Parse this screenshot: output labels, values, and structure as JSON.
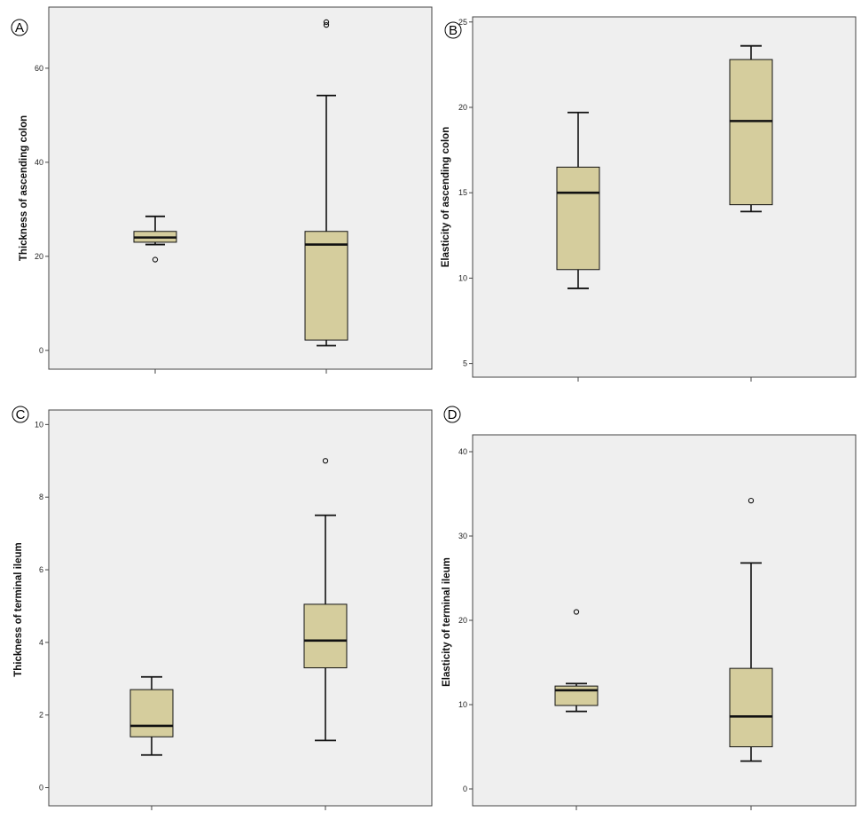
{
  "colors": {
    "plot_bg": "#efefef",
    "box_fill": "#d5cd9d",
    "stroke": "#111111",
    "frame": "#444444"
  },
  "chart_data": [
    {
      "type": "boxplot",
      "panel": "A",
      "ylabel": "Thickness of ascending colon",
      "ylim": [
        -4,
        73
      ],
      "yticks": [
        0,
        20,
        40,
        60
      ],
      "boxes": [
        {
          "whisker_low": 22.5,
          "q1": 23,
          "median": 24,
          "q3": 25.3,
          "whisker_high": 28.5,
          "outliers": [
            19.3
          ]
        },
        {
          "whisker_low": 1,
          "q1": 2.2,
          "median": 22.5,
          "q3": 25.3,
          "whisker_high": 54.2,
          "outliers": [
            69.2,
            69.8
          ]
        }
      ]
    },
    {
      "type": "boxplot",
      "panel": "B",
      "ylabel": "Elasticity of ascending colon",
      "ylim": [
        4.2,
        25.3
      ],
      "yticks": [
        5,
        10,
        15,
        20,
        25
      ],
      "boxes": [
        {
          "whisker_low": 9.4,
          "q1": 10.5,
          "median": 15,
          "q3": 16.5,
          "whisker_high": 19.7,
          "outliers": []
        },
        {
          "whisker_low": 13.9,
          "q1": 14.3,
          "median": 19.2,
          "q3": 22.8,
          "whisker_high": 23.6,
          "outliers": []
        }
      ]
    },
    {
      "type": "boxplot",
      "panel": "C",
      "ylabel": "Thickness of terminal ileum",
      "ylim": [
        -0.5,
        10.4
      ],
      "yticks": [
        0,
        2,
        4,
        6,
        8,
        10
      ],
      "boxes": [
        {
          "whisker_low": 0.9,
          "q1": 1.4,
          "median": 1.7,
          "q3": 2.7,
          "whisker_high": 3.05,
          "outliers": []
        },
        {
          "whisker_low": 1.3,
          "q1": 3.3,
          "median": 4.05,
          "q3": 5.05,
          "whisker_high": 7.5,
          "outliers": [
            9
          ]
        }
      ]
    },
    {
      "type": "boxplot",
      "panel": "D",
      "ylabel": "Elasticity of terminal ileum",
      "ylim": [
        -2,
        42
      ],
      "yticks": [
        0,
        10,
        20,
        30,
        40
      ],
      "boxes": [
        {
          "whisker_low": 9.2,
          "q1": 9.9,
          "median": 11.7,
          "q3": 12.2,
          "whisker_high": 12.5,
          "outliers": [
            21
          ]
        },
        {
          "whisker_low": 3.3,
          "q1": 5,
          "median": 8.6,
          "q3": 14.3,
          "whisker_high": 26.8,
          "outliers": [
            34.2
          ]
        }
      ]
    }
  ]
}
